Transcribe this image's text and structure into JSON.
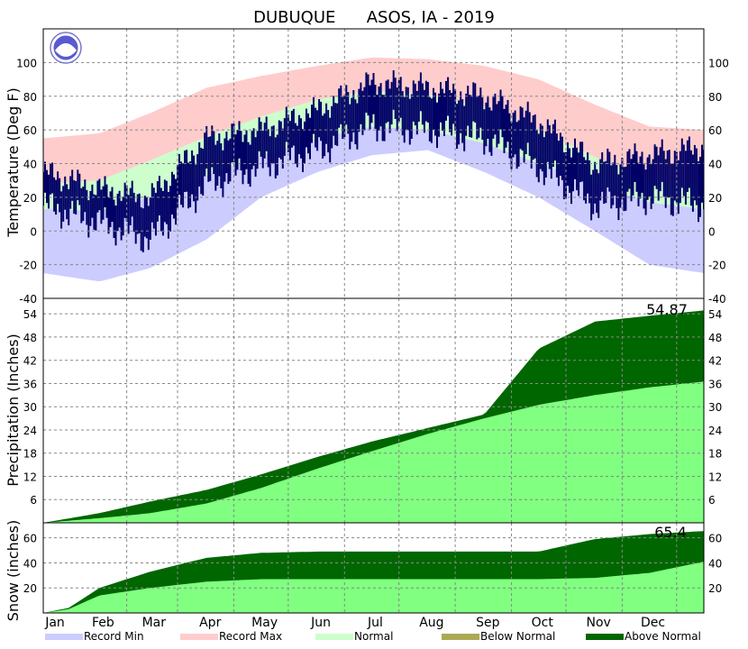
{
  "chart_data": [
    {
      "type": "area",
      "panel": "temperature",
      "title": "DUBUQUE      ASOS, IA - 2019",
      "ylabel": "Temperature (Deg F)",
      "ylim": [
        -40,
        120
      ],
      "yticks": [
        -40,
        -20,
        0,
        20,
        40,
        60,
        80,
        100
      ],
      "grid": true,
      "x": [
        "Jan 1",
        "Feb 1",
        "Mar 1",
        "Apr 1",
        "May 1",
        "Jun 1",
        "Jul 1",
        "Aug 1",
        "Sep 1",
        "Oct 1",
        "Nov 1",
        "Dec 1",
        "Dec 31"
      ],
      "series": [
        {
          "name": "Record Min",
          "color": "#ccccff",
          "values": [
            -25,
            -30,
            -22,
            -5,
            20,
            35,
            45,
            48,
            35,
            20,
            0,
            -20,
            -25
          ]
        },
        {
          "name": "Record Max",
          "color": "#ffcccc",
          "values": [
            55,
            58,
            70,
            85,
            92,
            98,
            103,
            102,
            98,
            90,
            75,
            62,
            60
          ]
        },
        {
          "name": "Normal",
          "color": "#ccffcc",
          "low": [
            13,
            12,
            20,
            33,
            45,
            55,
            62,
            60,
            52,
            40,
            28,
            17,
            13
          ],
          "high": [
            28,
            30,
            42,
            56,
            68,
            78,
            83,
            81,
            74,
            60,
            44,
            31,
            28
          ]
        },
        {
          "name": "Observed",
          "color": "#000066",
          "low": [
            15,
            5,
            -5,
            28,
            38,
            48,
            62,
            60,
            55,
            38,
            15,
            20,
            15
          ],
          "high": [
            35,
            25,
            20,
            55,
            60,
            72,
            88,
            85,
            80,
            65,
            40,
            45,
            50
          ]
        }
      ],
      "nws_logo": "noaa-logo"
    },
    {
      "type": "area",
      "panel": "precipitation",
      "ylabel": "Precipitation (Inches)",
      "ylim": [
        0,
        58
      ],
      "yticks": [
        6,
        12,
        18,
        24,
        30,
        36,
        42,
        48,
        54
      ],
      "grid": true,
      "total_label": "54.87",
      "x": [
        "Jan 1",
        "Feb 1",
        "Mar 1",
        "Apr 1",
        "May 1",
        "Jun 1",
        "Jul 1",
        "Aug 1",
        "Sep 1",
        "Oct 1",
        "Nov 1",
        "Dec 1",
        "Dec 31"
      ],
      "series": [
        {
          "name": "Normal",
          "color": "#80ff80",
          "values": [
            0,
            1.2,
            2.5,
            5,
            9,
            14,
            18.5,
            23,
            27,
            30.5,
            33,
            35,
            36.5
          ]
        },
        {
          "name": "Observed",
          "color": "#006600",
          "values": [
            0,
            2.5,
            5.5,
            8.5,
            12.5,
            17,
            21,
            24.5,
            28,
            45,
            52,
            53.5,
            54.87
          ]
        }
      ],
      "below_normal_color": "#aaaa55",
      "above_normal_color": "#006600"
    },
    {
      "type": "area",
      "panel": "snow",
      "ylabel": "Snow (inches)",
      "ylim": [
        0,
        72
      ],
      "yticks": [
        20,
        40,
        60
      ],
      "grid": true,
      "total_label": "65.4",
      "x": [
        "Jan 1",
        "Jan 15",
        "Feb 1",
        "Mar 1",
        "Apr 1",
        "May 1",
        "Jun 1",
        "Jul 1",
        "Aug 1",
        "Sep 1",
        "Oct 1",
        "Nov 1",
        "Dec 1",
        "Dec 31"
      ],
      "series": [
        {
          "name": "Normal",
          "color": "#80ff80",
          "values": [
            0,
            3,
            14,
            20,
            25,
            27,
            27,
            27,
            27,
            27,
            27,
            28,
            32,
            41
          ]
        },
        {
          "name": "Observed",
          "color": "#006600",
          "values": [
            0,
            4,
            20,
            33,
            44,
            48,
            49,
            49,
            49,
            49,
            49,
            59,
            63,
            65.4
          ]
        }
      ]
    }
  ],
  "x_axis": {
    "months": [
      "Jan",
      "Feb",
      "Mar",
      "Apr",
      "May",
      "Jun",
      "Jul",
      "Aug",
      "Sep",
      "Oct",
      "Nov",
      "Dec"
    ]
  },
  "legend": {
    "placement": "bottom",
    "items": [
      {
        "label": "Record Min",
        "color": "#ccccff"
      },
      {
        "label": "Record Max",
        "color": "#ffcccc"
      },
      {
        "label": "Normal",
        "color": "#ccffcc"
      },
      {
        "label": "Below Normal",
        "color": "#aaaa55"
      },
      {
        "label": "Above Normal",
        "color": "#006600"
      }
    ]
  }
}
